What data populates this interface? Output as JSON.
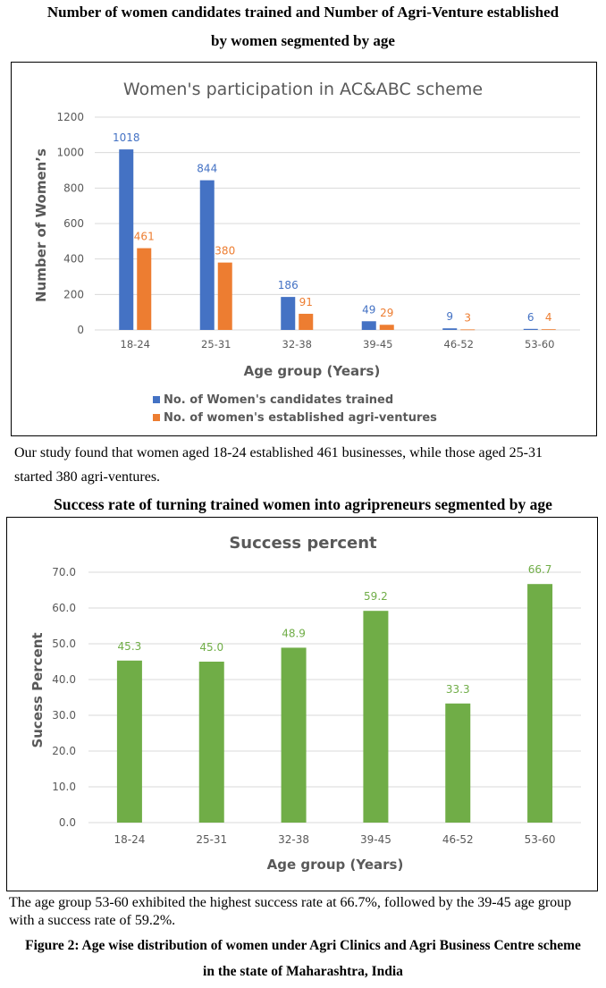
{
  "document": {
    "heading1_line1": "Number of women candidates trained and Number of Agri-Venture established",
    "heading1_line2": "by women segmented by age",
    "paragraph1_line1": "Our study found that women aged 18-24 established 461 businesses, while those aged 25-31",
    "paragraph1_line2": "started 380 agri-ventures.",
    "heading2": "Success rate of turning trained women into agripreneurs segmented by age",
    "paragraph2_line1": "The age group 53-60 exhibited the highest success rate at 66.7%, followed by the 39-45 age group",
    "paragraph2_line2": "with a success rate of 59.2%.",
    "caption_line1": "Figure 2: Age wise distribution of women under Agri Clinics and Agri Business Centre scheme",
    "caption_line2": "in the state of Maharashtra, India"
  },
  "colors": {
    "blue": "#4472C4",
    "orange": "#ED7D31",
    "green": "#70AD47",
    "text_gray": "#595959",
    "grid": "#D9D9D9"
  },
  "chart_data": [
    {
      "type": "bar",
      "title": "Women's participation in AC&ABC scheme",
      "xlabel": "Age group (Years)",
      "ylabel": "Number of Women’s",
      "categories": [
        "18-24",
        "25-31",
        "32-38",
        "39-45",
        "46-52",
        "53-60"
      ],
      "series": [
        {
          "name": "No. of Women's candidates trained",
          "color": "#4472C4",
          "values": [
            1018,
            844,
            186,
            49,
            9,
            6
          ]
        },
        {
          "name": "No. of women's established agri-ventures",
          "color": "#ED7D31",
          "values": [
            461,
            380,
            91,
            29,
            3,
            4
          ]
        }
      ],
      "ylim": [
        0,
        1200
      ],
      "yticks": [
        0,
        200,
        400,
        600,
        800,
        1000,
        1200
      ],
      "ytick_labels": [
        "0",
        "200",
        "400",
        "600",
        "800",
        "1000",
        "1200"
      ],
      "grid": true,
      "legend": "bottom-left",
      "data_labels": true
    },
    {
      "type": "bar",
      "title": "Success percent",
      "xlabel": "Age group (Years)",
      "ylabel": "Sucess Percent",
      "categories": [
        "18-24",
        "25-31",
        "32-38",
        "39-45",
        "46-52",
        "53-60"
      ],
      "series": [
        {
          "name": "Success percent",
          "color": "#70AD47",
          "values": [
            45.3,
            45.0,
            48.9,
            59.2,
            33.3,
            66.7
          ]
        }
      ],
      "value_labels": [
        "45.3",
        "45.0",
        "48.9",
        "59.2",
        "33.3",
        "66.7"
      ],
      "ylim": [
        0,
        70
      ],
      "yticks": [
        0,
        10,
        20,
        30,
        40,
        50,
        60,
        70
      ],
      "ytick_labels": [
        "0.0",
        "10.0",
        "20.0",
        "30.0",
        "40.0",
        "50.0",
        "60.0",
        "70.0"
      ],
      "grid": true,
      "legend": "none",
      "data_labels": true
    }
  ]
}
